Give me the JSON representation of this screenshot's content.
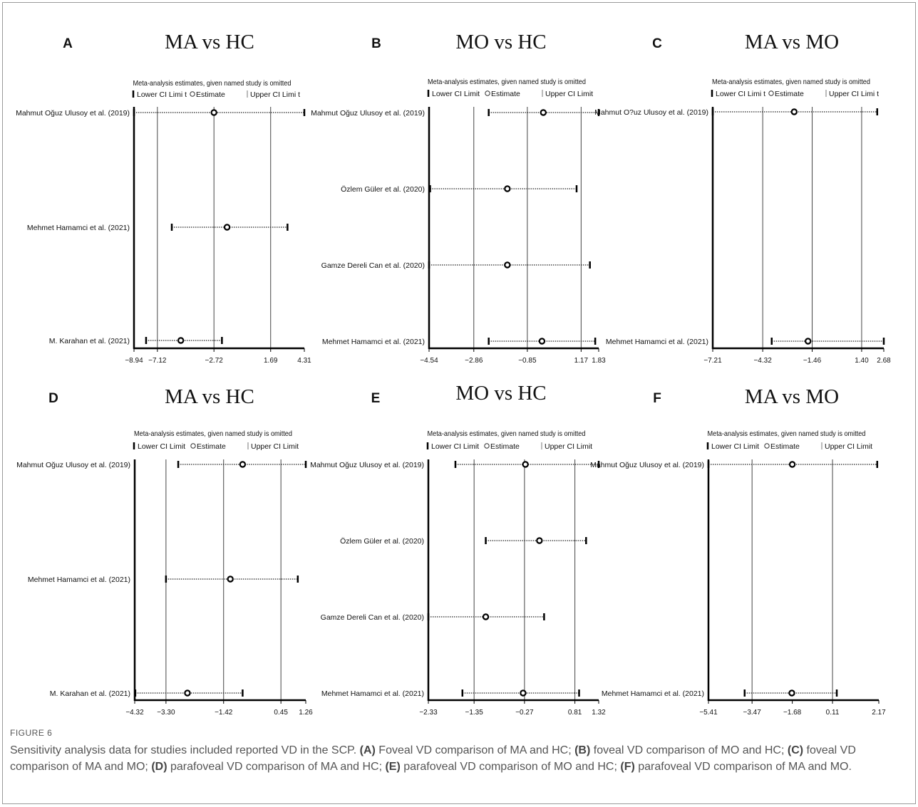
{
  "figure": {
    "label": "FIGURE 6",
    "caption": [
      {
        "t": "Sensitivity analysis data for studies included reported VD in the SCP. "
      },
      {
        "t": "(A)",
        "b": true
      },
      {
        "t": " Foveal VD comparison of MA and HC; "
      },
      {
        "t": "(B)",
        "b": true
      },
      {
        "t": " foveal VD comparison of MO and HC; "
      },
      {
        "t": "(C)",
        "b": true
      },
      {
        "t": " foveal VD comparison of MA and MO; "
      },
      {
        "t": "(D)",
        "b": true
      },
      {
        "t": " parafoveal VD comparison of MA and HC; "
      },
      {
        "t": "(E)",
        "b": true
      },
      {
        "t": " parafoveal VD comparison of MO and HC; "
      },
      {
        "t": "(F)",
        "b": true
      },
      {
        "t": " parafoveal VD comparison of MA and MO."
      }
    ]
  },
  "chart_data": [
    {
      "type": "forest",
      "panel": "A",
      "title": "MA vs HC",
      "subtitle": "Meta-analysis estimates, given named study is omitted",
      "legend": [
        "Lower CI Limi t",
        "Estimate",
        "Upper CI Limi t"
      ],
      "ticks": [
        -8.94,
        -7.12,
        -2.72,
        1.69,
        4.31
      ],
      "tick_labels": [
        "-8.94",
        "-7.12",
        "-2.72",
        "1.69",
        "4.31"
      ],
      "gridlines": [
        -7.12,
        -2.72,
        1.69
      ],
      "xlim": [
        -8.94,
        4.31
      ],
      "studies": [
        {
          "name": "Mahmut Oğuz Ulusoy et al. (2019)",
          "lower": -8.94,
          "estimate": -2.72,
          "upper": 4.31
        },
        {
          "name": "Mehmet Hamamci et al. (2021)",
          "lower": -6.0,
          "estimate": -1.7,
          "upper": 3.0
        },
        {
          "name": "M. Karahan et al. (2021)",
          "lower": -8.0,
          "estimate": -5.3,
          "upper": -2.1
        }
      ]
    },
    {
      "type": "forest",
      "panel": "B",
      "title": "MO vs HC",
      "subtitle": "Meta-analysis estimates, given named study is omitted",
      "legend": [
        "Lower CI Limit",
        "Estimate",
        "Upper CI Limit"
      ],
      "ticks": [
        -4.54,
        -2.86,
        -0.85,
        1.17,
        1.83
      ],
      "tick_labels": [
        "-4.54",
        "-2.86",
        "-0.85",
        "1.17",
        "1.83"
      ],
      "gridlines": [
        -2.86,
        -0.85,
        1.17
      ],
      "xlim": [
        -4.54,
        1.83
      ],
      "studies": [
        {
          "name": "Mahmut Oğuz Ulusoy et al. (2019)",
          "lower": -2.3,
          "estimate": -0.25,
          "upper": 1.83
        },
        {
          "name": "Özlem Güler et al. (2020)",
          "lower": -4.5,
          "estimate": -1.6,
          "upper": 1.0
        },
        {
          "name": "Gamze Dereli Can et al. (2020)",
          "lower": -4.54,
          "estimate": -1.6,
          "upper": 1.5
        },
        {
          "name": "Mehmet Hamamci et al. (2021)",
          "lower": -2.3,
          "estimate": -0.3,
          "upper": 1.7
        }
      ]
    },
    {
      "type": "forest",
      "panel": "C",
      "title": "MA vs MO",
      "subtitle": "Meta-analysis estimates, given named study is omitted",
      "legend": [
        "Lower CI Limi t",
        "Estimate",
        "Upper CI Limi t"
      ],
      "ticks": [
        -7.21,
        -4.32,
        -1.46,
        1.4,
        2.68
      ],
      "tick_labels": [
        "-7.21",
        "-4.32",
        "-1.46",
        "1.40",
        "2.68"
      ],
      "gridlines": [
        -4.32,
        -1.46,
        1.4
      ],
      "xlim": [
        -7.21,
        2.68
      ],
      "studies": [
        {
          "name": "Mahmut O?uz Ulusoy et al. (2019)",
          "lower": -7.21,
          "estimate": -2.5,
          "upper": 2.3
        },
        {
          "name": "Mehmet Hamamci et al. (2021)",
          "lower": -3.8,
          "estimate": -1.7,
          "upper": 2.68
        }
      ]
    },
    {
      "type": "forest",
      "panel": "D",
      "title": "MA vs HC",
      "subtitle": "Meta-analysis estimates, given named study is omitted",
      "legend": [
        "Lower CI Limit",
        "Estimate",
        "Upper CI Limit"
      ],
      "ticks": [
        -4.32,
        -3.3,
        -1.42,
        0.45,
        1.26
      ],
      "tick_labels": [
        "-4.32",
        "-3.30",
        "-1.42",
        "0.45",
        "1.26"
      ],
      "gridlines": [
        -3.3,
        -1.42,
        0.45
      ],
      "xlim": [
        -4.32,
        1.26
      ],
      "studies": [
        {
          "name": "Mahmut Oğuz Ulusoy et al. (2019)",
          "lower": -2.9,
          "estimate": -0.8,
          "upper": 1.26
        },
        {
          "name": "Mehmet Hamamci et al. (2021)",
          "lower": -3.3,
          "estimate": -1.2,
          "upper": 1.0
        },
        {
          "name": "M. Karahan et al. (2021)",
          "lower": -4.3,
          "estimate": -2.6,
          "upper": -0.8
        }
      ]
    },
    {
      "type": "forest",
      "panel": "E",
      "title": "MO vs HC",
      "subtitle": "Meta-analysis estimates, given named study is omitted",
      "legend": [
        "Lower CI Limit",
        "Estimate",
        "Upper CI Limit"
      ],
      "ticks": [
        -2.33,
        -1.35,
        -0.27,
        0.81,
        1.32
      ],
      "tick_labels": [
        "-2.33",
        "-1.35",
        "-0.27",
        "0.81",
        "1.32"
      ],
      "gridlines": [
        -1.35,
        -0.27,
        0.81
      ],
      "xlim": [
        -2.33,
        1.32
      ],
      "studies": [
        {
          "name": "Mahmut Oğuz Ulusoy et al. (2019)",
          "lower": -1.75,
          "estimate": -0.25,
          "upper": 1.32
        },
        {
          "name": "Özlem Güler et al. (2020)",
          "lower": -1.1,
          "estimate": 0.05,
          "upper": 1.05
        },
        {
          "name": "Gamze Dereli Can et al. (2020)",
          "lower": -2.33,
          "estimate": -1.1,
          "upper": 0.15
        },
        {
          "name": "Mehmet Hamamci et al. (2021)",
          "lower": -1.6,
          "estimate": -0.3,
          "upper": 0.9
        }
      ]
    },
    {
      "type": "forest",
      "panel": "F",
      "title": "MA vs MO",
      "subtitle": "Meta-analysis estimates, given named study is omitted",
      "legend": [
        "Lower CI Limit",
        "Estimate",
        "Upper CI Limit"
      ],
      "ticks": [
        -5.41,
        -3.47,
        -1.68,
        0.11,
        2.17
      ],
      "tick_labels": [
        "-5.41",
        "-3.47",
        "-1.68",
        "0.11",
        "2.17"
      ],
      "gridlines": [
        -3.47,
        0.11
      ],
      "xlim": [
        -5.41,
        2.17
      ],
      "studies": [
        {
          "name": "Mahmut Oğuz Ulusoy et al. (2019)",
          "lower": -5.41,
          "estimate": -1.68,
          "upper": 2.1
        },
        {
          "name": "Mehmet Hamamci et al. (2021)",
          "lower": -3.8,
          "estimate": -1.7,
          "upper": 0.3
        }
      ]
    }
  ]
}
